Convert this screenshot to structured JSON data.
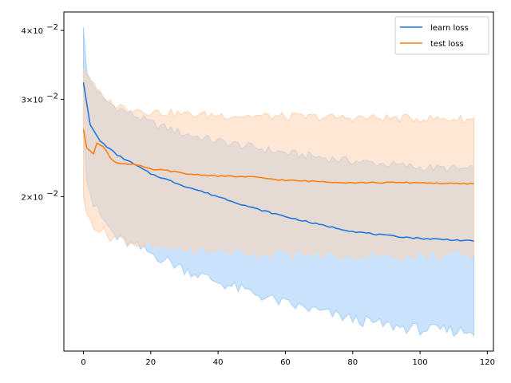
{
  "chart_data": {
    "type": "line",
    "title": "",
    "xlabel": "",
    "ylabel": "",
    "yscale": "log",
    "xlim": [
      -5.8,
      121.8
    ],
    "ylim": [
      0.0105,
      0.0432
    ],
    "x_ticks": [
      0,
      20,
      40,
      60,
      80,
      100,
      120
    ],
    "x_tick_labels": [
      "0",
      "20",
      "40",
      "60",
      "80",
      "100",
      "120"
    ],
    "y_ticks": [
      {
        "value": 0.04,
        "mantissa": "4",
        "exponent": "−2"
      },
      {
        "value": 0.03,
        "mantissa": "3",
        "exponent": "−2"
      },
      {
        "value": 0.02,
        "mantissa": "2",
        "exponent": "−2"
      }
    ],
    "y_tick_suffix": "×10",
    "grid": false,
    "legend_position": "top-right",
    "series": [
      {
        "name": "learn loss",
        "color": "#1f77e0",
        "band_color": "#a6cffa",
        "points": [
          [
            0,
            0.0322
          ],
          [
            2,
            0.027
          ],
          [
            5,
            0.0252
          ],
          [
            10,
            0.0238
          ],
          [
            15,
            0.0229
          ],
          [
            20,
            0.022
          ],
          [
            30,
            0.0209
          ],
          [
            40,
            0.02
          ],
          [
            50,
            0.0191
          ],
          [
            60,
            0.0184
          ],
          [
            70,
            0.0178
          ],
          [
            80,
            0.0173
          ],
          [
            90,
            0.017
          ],
          [
            100,
            0.0168
          ],
          [
            110,
            0.0167
          ],
          [
            116,
            0.0166
          ]
        ],
        "band_upper": [
          [
            0,
            0.0405
          ],
          [
            1,
            0.0335
          ],
          [
            3,
            0.0318
          ],
          [
            6,
            0.03
          ],
          [
            10,
            0.029
          ],
          [
            20,
            0.0272
          ],
          [
            30,
            0.026
          ],
          [
            40,
            0.0252
          ],
          [
            50,
            0.0246
          ],
          [
            60,
            0.024
          ],
          [
            70,
            0.0236
          ],
          [
            80,
            0.0232
          ],
          [
            90,
            0.0229
          ],
          [
            100,
            0.0226
          ],
          [
            116,
            0.0224
          ]
        ],
        "band_lower": [
          [
            0,
            0.0262
          ],
          [
            1,
            0.0212
          ],
          [
            3,
            0.0193
          ],
          [
            6,
            0.0181
          ],
          [
            10,
            0.0168
          ],
          [
            20,
            0.0158
          ],
          [
            30,
            0.0148
          ],
          [
            40,
            0.014
          ],
          [
            50,
            0.0134
          ],
          [
            60,
            0.0128
          ],
          [
            70,
            0.0124
          ],
          [
            80,
            0.012
          ],
          [
            90,
            0.0117
          ],
          [
            100,
            0.0115
          ],
          [
            116,
            0.0114
          ]
        ]
      },
      {
        "name": "test loss",
        "color": "#ff7f0e",
        "band_color": "#fdd3b2",
        "points": [
          [
            0,
            0.0265
          ],
          [
            1,
            0.0245
          ],
          [
            3,
            0.0239
          ],
          [
            4,
            0.025
          ],
          [
            6,
            0.0246
          ],
          [
            8,
            0.0235
          ],
          [
            10,
            0.023
          ],
          [
            15,
            0.0229
          ],
          [
            20,
            0.0224
          ],
          [
            25,
            0.0223
          ],
          [
            30,
            0.022
          ],
          [
            40,
            0.0218
          ],
          [
            50,
            0.0217
          ],
          [
            60,
            0.0214
          ],
          [
            70,
            0.0213
          ],
          [
            80,
            0.0212
          ],
          [
            90,
            0.0212
          ],
          [
            100,
            0.0212
          ],
          [
            110,
            0.0211
          ],
          [
            116,
            0.0211
          ]
        ],
        "band_upper": [
          [
            0,
            0.034
          ],
          [
            3,
            0.0318
          ],
          [
            6,
            0.03
          ],
          [
            10,
            0.0292
          ],
          [
            20,
            0.0285
          ],
          [
            30,
            0.0282
          ],
          [
            40,
            0.0281
          ],
          [
            60,
            0.0279
          ],
          [
            80,
            0.0278
          ],
          [
            100,
            0.0277
          ],
          [
            116,
            0.0276
          ]
        ],
        "band_lower": [
          [
            0,
            0.02
          ],
          [
            1,
            0.0186
          ],
          [
            3,
            0.0179
          ],
          [
            6,
            0.0172
          ],
          [
            10,
            0.0168
          ],
          [
            20,
            0.0162
          ],
          [
            40,
            0.016
          ],
          [
            60,
            0.0158
          ],
          [
            80,
            0.0157
          ],
          [
            100,
            0.0157
          ],
          [
            116,
            0.0157
          ]
        ]
      }
    ]
  }
}
